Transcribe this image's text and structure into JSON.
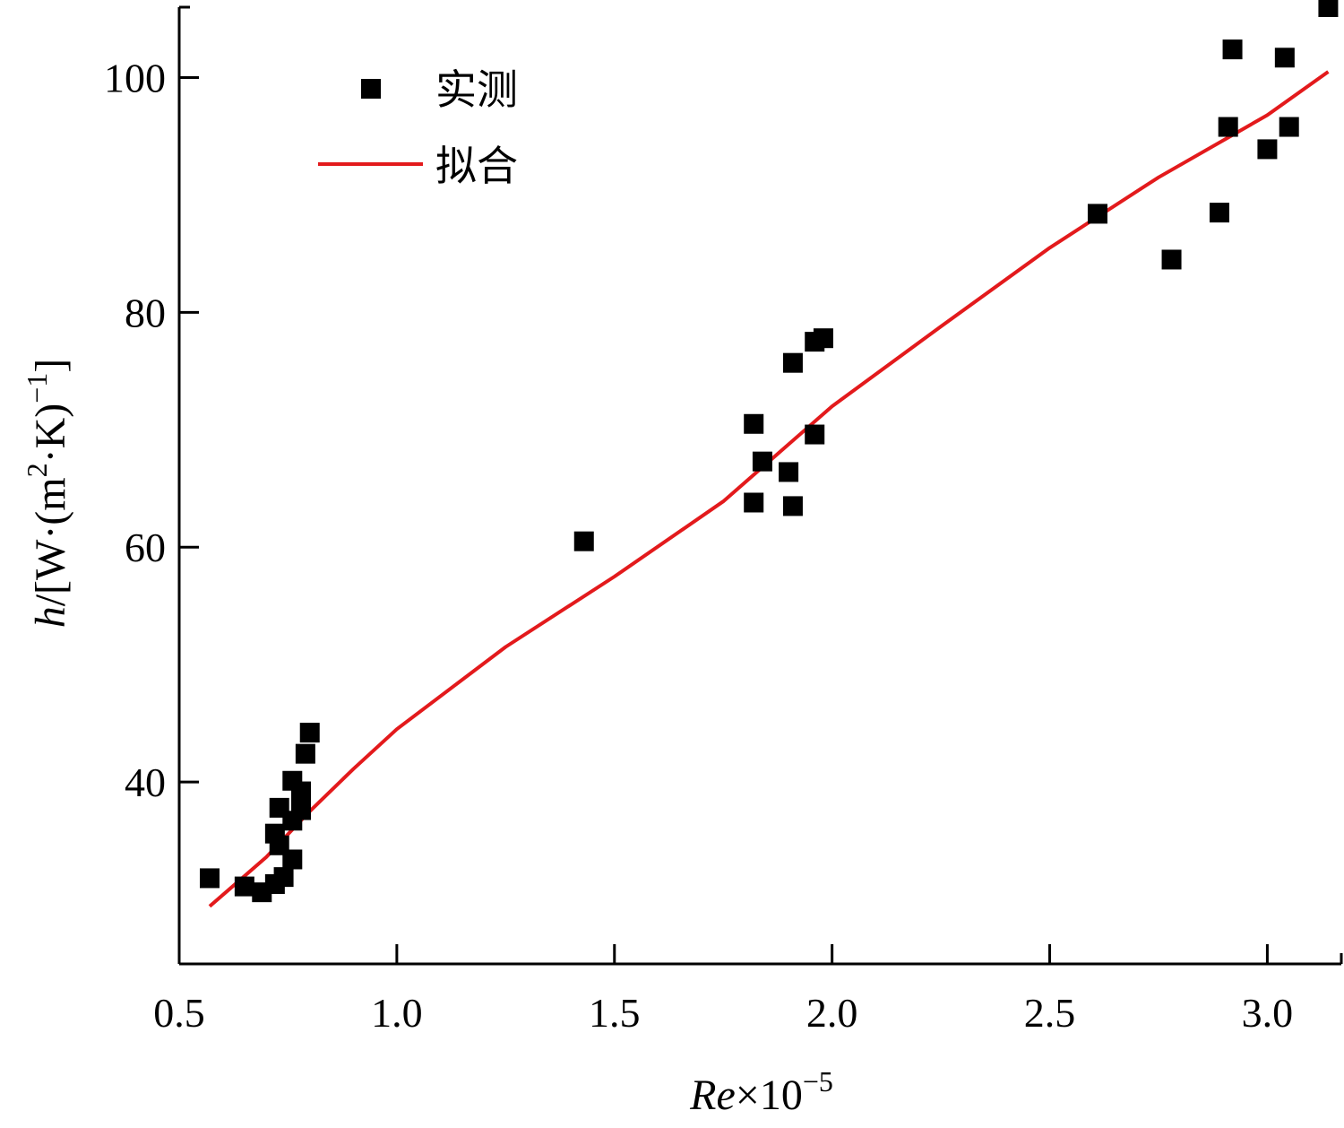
{
  "chart_data": {
    "type": "scatter",
    "xlabel": {
      "italic": "Re",
      "rest": "×10",
      "sup": "−5"
    },
    "ylabel": {
      "italic": "h",
      "rest": "/[W·(m",
      "sup1": "2",
      "mid": "·K)",
      "sup2": "−1",
      "end": "]"
    },
    "xlim": [
      0.5,
      3.17
    ],
    "ylim": [
      24.5,
      106
    ],
    "xticks": [
      0.5,
      1.0,
      1.5,
      2.0,
      2.5,
      3.0
    ],
    "xtick_labels": [
      "0.5",
      "1.0",
      "1.5",
      "2.0",
      "2.5",
      "3.0"
    ],
    "yticks": [
      40,
      60,
      80,
      100
    ],
    "ytick_labels": [
      "40",
      "60",
      "80",
      "100"
    ],
    "grid": false,
    "legend_position": "top-left",
    "colors": {
      "measured": "#000000",
      "fit": "#e31a1c"
    },
    "series": [
      {
        "name": "实测",
        "kind": "scatter",
        "marker": "square",
        "points": [
          [
            0.57,
            31.8
          ],
          [
            0.65,
            31.1
          ],
          [
            0.69,
            30.6
          ],
          [
            0.72,
            31.3
          ],
          [
            0.74,
            31.9
          ],
          [
            0.76,
            33.4
          ],
          [
            0.73,
            34.6
          ],
          [
            0.72,
            35.6
          ],
          [
            0.76,
            36.7
          ],
          [
            0.78,
            37.6
          ],
          [
            0.78,
            39.2
          ],
          [
            0.76,
            40.1
          ],
          [
            0.73,
            37.8
          ],
          [
            0.79,
            42.4
          ],
          [
            0.8,
            44.2
          ],
          [
            1.43,
            60.5
          ],
          [
            1.82,
            63.8
          ],
          [
            1.82,
            70.5
          ],
          [
            1.84,
            67.3
          ],
          [
            1.9,
            66.4
          ],
          [
            1.91,
            63.5
          ],
          [
            1.91,
            75.7
          ],
          [
            1.96,
            69.6
          ],
          [
            1.96,
            77.5
          ],
          [
            1.98,
            77.8
          ],
          [
            2.61,
            88.4
          ],
          [
            2.78,
            84.5
          ],
          [
            2.89,
            88.5
          ],
          [
            2.91,
            95.8
          ],
          [
            2.92,
            102.4
          ],
          [
            3.0,
            93.9
          ],
          [
            3.04,
            101.7
          ],
          [
            3.05,
            95.8
          ],
          [
            3.14,
            106.0
          ]
        ]
      },
      {
        "name": "拟合",
        "kind": "line",
        "points": [
          [
            0.57,
            29.4
          ],
          [
            0.7,
            33.6
          ],
          [
            0.8,
            37.5
          ],
          [
            0.9,
            41.1
          ],
          [
            1.0,
            44.5
          ],
          [
            1.25,
            51.5
          ],
          [
            1.5,
            57.5
          ],
          [
            1.75,
            63.9
          ],
          [
            2.0,
            72.0
          ],
          [
            2.25,
            78.8
          ],
          [
            2.5,
            85.5
          ],
          [
            2.75,
            91.5
          ],
          [
            3.0,
            96.8
          ],
          [
            3.14,
            100.5
          ]
        ]
      }
    ]
  }
}
